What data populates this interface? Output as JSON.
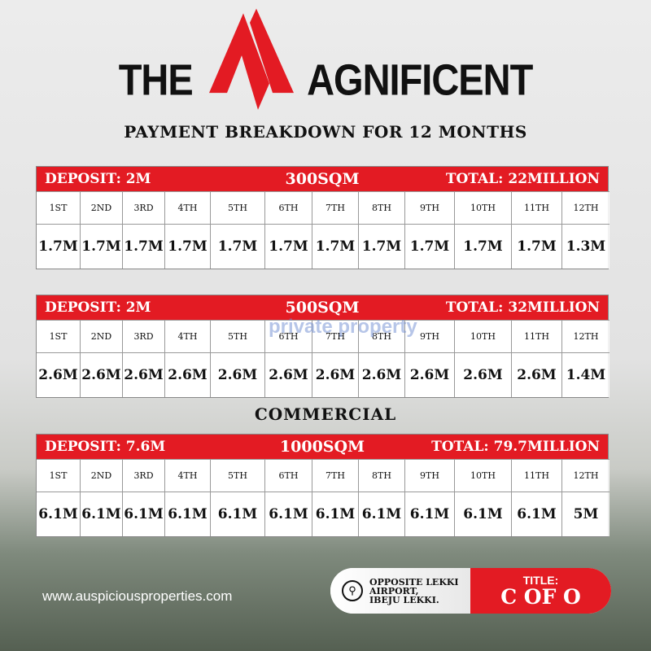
{
  "brand": {
    "logo_text_left": "THE",
    "logo_text_right": "AGNIFICENT",
    "accent": "#e31b23"
  },
  "subtitle": "PAYMENT BREAKDOWN FOR 12 MONTHS",
  "months": [
    "1ST",
    "2ND",
    "3RD",
    "4TH",
    "5TH",
    "6TH",
    "7TH",
    "8TH",
    "9TH",
    "10TH",
    "11TH",
    "12TH"
  ],
  "plans": [
    {
      "deposit": "DEPOSIT: 2M",
      "size": "300SQM",
      "total": "TOTAL: 22MILLION",
      "values": [
        "1.7M",
        "1.7M",
        "1.7M",
        "1.7M",
        "1.7M",
        "1.7M",
        "1.7M",
        "1.7M",
        "1.7M",
        "1.7M",
        "1.7M",
        "1.3M"
      ]
    },
    {
      "deposit": "DEPOSIT: 2M",
      "size": "500SQM",
      "total": "TOTAL: 32MILLION",
      "values": [
        "2.6M",
        "2.6M",
        "2.6M",
        "2.6M",
        "2.6M",
        "2.6M",
        "2.6M",
        "2.6M",
        "2.6M",
        "2.6M",
        "2.6M",
        "1.4M"
      ]
    },
    {
      "deposit": "DEPOSIT: 7.6M",
      "size": "1000SQM",
      "total": "TOTAL: 79.7MILLION",
      "values": [
        "6.1M",
        "6.1M",
        "6.1M",
        "6.1M",
        "6.1M",
        "6.1M",
        "6.1M",
        "6.1M",
        "6.1M",
        "6.1M",
        "6.1M",
        "5M"
      ]
    }
  ],
  "commercial_label": "COMMERCIAL",
  "watermark": "private property",
  "website": "www.auspiciousproperties.com",
  "location": {
    "icon": "map-pin-icon",
    "lines": [
      "OPPOSITE LEKKI",
      "AIRPORT,",
      "IBEJU LEKKI."
    ]
  },
  "title_badge": {
    "label": "TITLE:",
    "value": "C OF O"
  }
}
